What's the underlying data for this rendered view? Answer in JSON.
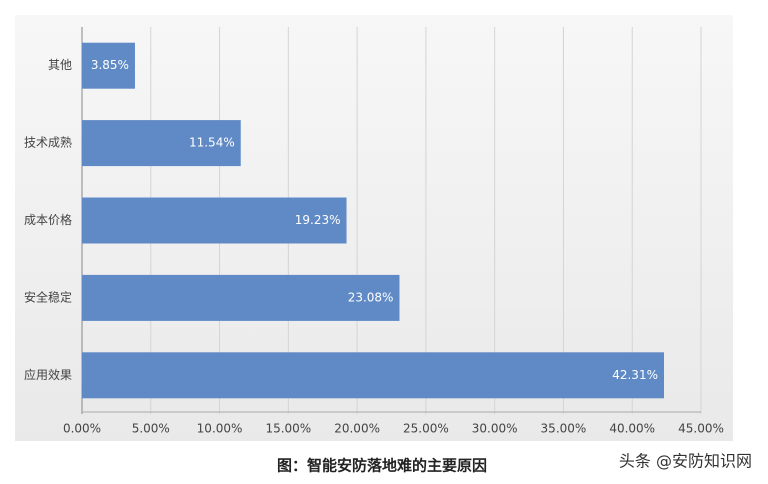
{
  "chart_data": {
    "type": "hbar",
    "categories": [
      "其他",
      "技术成熟",
      "成本价格",
      "安全稳定",
      "应用效果"
    ],
    "values": [
      3.85,
      11.54,
      19.23,
      23.08,
      42.31
    ],
    "value_labels": [
      "3.85%",
      "11.54%",
      "19.23%",
      "23.08%",
      "42.31%"
    ],
    "color": "#5f8ac6",
    "xlim": [
      0,
      45
    ],
    "xticks": [
      {
        "value": 0,
        "label": "0.00%"
      },
      {
        "value": 5,
        "label": "5.00%"
      },
      {
        "value": 10,
        "label": "10.00%"
      },
      {
        "value": 15,
        "label": "15.00%"
      },
      {
        "value": 20,
        "label": "20.00%"
      },
      {
        "value": 25,
        "label": "25.00%"
      },
      {
        "value": 30,
        "label": "30.00%"
      },
      {
        "value": 35,
        "label": "35.00%"
      },
      {
        "value": 40,
        "label": "40.00%"
      },
      {
        "value": 45,
        "label": "45.00%"
      }
    ],
    "grid": true,
    "caption": "图：智能安防落地难的主要原因",
    "watermark": "头条 @安防知识网"
  }
}
